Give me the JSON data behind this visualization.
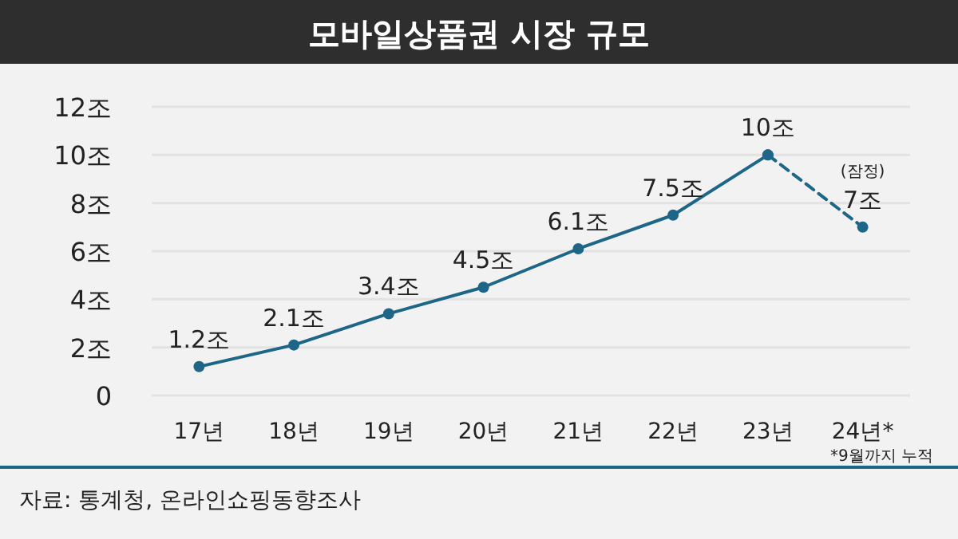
{
  "chart_data": {
    "type": "line",
    "title": "모바일상품권 시장 규모",
    "categories": [
      "17년",
      "18년",
      "19년",
      "20년",
      "21년",
      "22년",
      "23년",
      "24년*"
    ],
    "series": [
      {
        "color": "#1d6688",
        "line_style": "solid",
        "values": [
          1.2,
          2.1,
          3.4,
          4.5,
          6.1,
          7.5,
          10,
          null
        ],
        "value_labels": [
          "1.2조",
          "2.1조",
          "3.4조",
          "4.5조",
          "6.1조",
          "7.5조",
          "10조",
          null
        ]
      },
      {
        "color": "#1d6688",
        "line_style": "dashed",
        "values": [
          null,
          null,
          null,
          null,
          null,
          null,
          10,
          7
        ],
        "value_labels": [
          null,
          null,
          null,
          null,
          null,
          null,
          null,
          "7조"
        ]
      }
    ],
    "marker": "circle",
    "ylim": [
      0,
      12
    ],
    "yticks": [
      0,
      {
        "value": 2,
        "label": "2조"
      },
      {
        "value": 4,
        "label": "4조"
      },
      {
        "value": 6,
        "label": "6조"
      },
      {
        "value": 8,
        "label": "8조"
      },
      {
        "value": 10,
        "label": "10조"
      },
      {
        "value": 12,
        "label": "12조"
      }
    ],
    "grid": "y",
    "annotations": [
      {
        "text": "(잠정)",
        "x": "24년*",
        "y": 7
      },
      "*9월까지 누적",
      "자료: 통계청, 온라인쇼핑동향조사"
    ]
  }
}
